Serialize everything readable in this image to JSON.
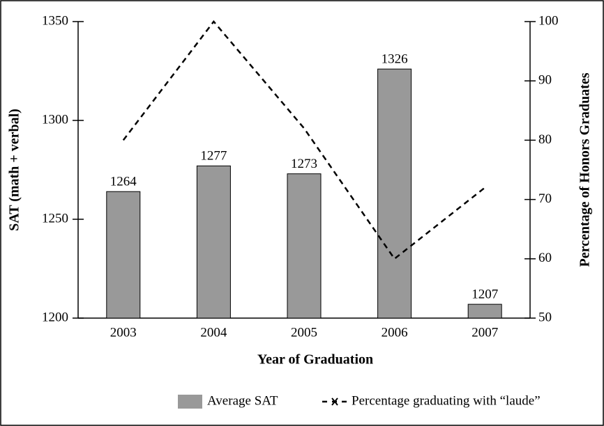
{
  "chart_data": {
    "type": "bar",
    "categories": [
      "2003",
      "2004",
      "2005",
      "2006",
      "2007"
    ],
    "xlabel": "Year of Graduation",
    "ylabel": "SAT (math + verbal)",
    "y2label": "Percentage of Honors Graduates",
    "series": [
      {
        "name": "Average SAT",
        "type": "bar",
        "color": "#999999",
        "values": [
          1264,
          1277,
          1273,
          1326,
          1207
        ]
      },
      {
        "name": "Percentage graduating with “laude”",
        "type": "line",
        "axis": "y2",
        "color": "#000000",
        "dashed": true,
        "values": [
          80,
          100,
          82,
          60,
          72
        ]
      }
    ],
    "ylim": [
      1200,
      1350
    ],
    "yticks": [
      1200,
      1250,
      1300,
      1350
    ],
    "y2lim": [
      50,
      100
    ],
    "y2ticks": [
      50,
      60,
      70,
      80,
      90,
      100
    ],
    "legend": "bottom"
  }
}
